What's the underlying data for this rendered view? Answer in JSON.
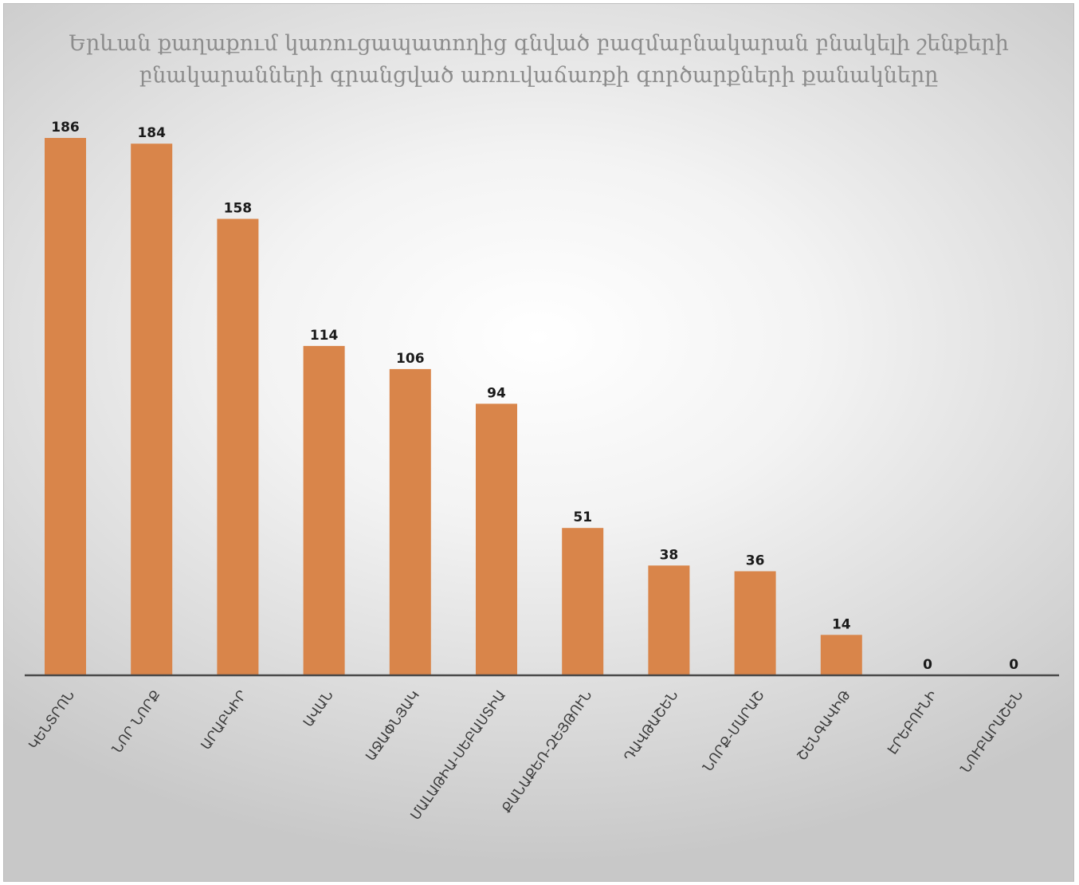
{
  "chart_data": {
    "type": "bar",
    "title_lines": [
      "Երևան քաղաքում կառուցապատողից գնված բազմաբնակարան բնակելի շենքերի",
      "բնակարանների գրանցված առուվաճառքի գործարքների քանակները"
    ],
    "categories": [
      "ԿԵՆՏՐՈՆ",
      "ՆՈՐ ՆՈՐՔ",
      "ԱՐԱԲԿԻՐ",
      "ԱՎԱՆ",
      "ԱՋԱՓՆՅԱԿ",
      "ՄԱԼԱԹԻԱ-ՍԵԲԱՍՏԻԱ",
      "ՔԱՆԱՔԵՌ-ԶԵՅԹՈՒՆ",
      "ԴԱՎԹԱՇԵՆ",
      "ՆՈՐՔ-ՄԱՐԱՇ",
      "ՇԵՆԳԱՎԻԹ",
      "ԷՐԵԲՈՒՆԻ",
      "ՆՈՒԲԱՐԱՇԵՆ"
    ],
    "values": [
      186,
      184,
      158,
      114,
      106,
      94,
      51,
      38,
      36,
      14,
      0,
      0
    ],
    "xlabel": "",
    "ylabel": "",
    "ylim": [
      0,
      186
    ],
    "grid": false,
    "legend": "none",
    "colors": {
      "bar": "#d9854a",
      "axis": "#4a4a4a",
      "title": "#8c8c8c"
    }
  }
}
